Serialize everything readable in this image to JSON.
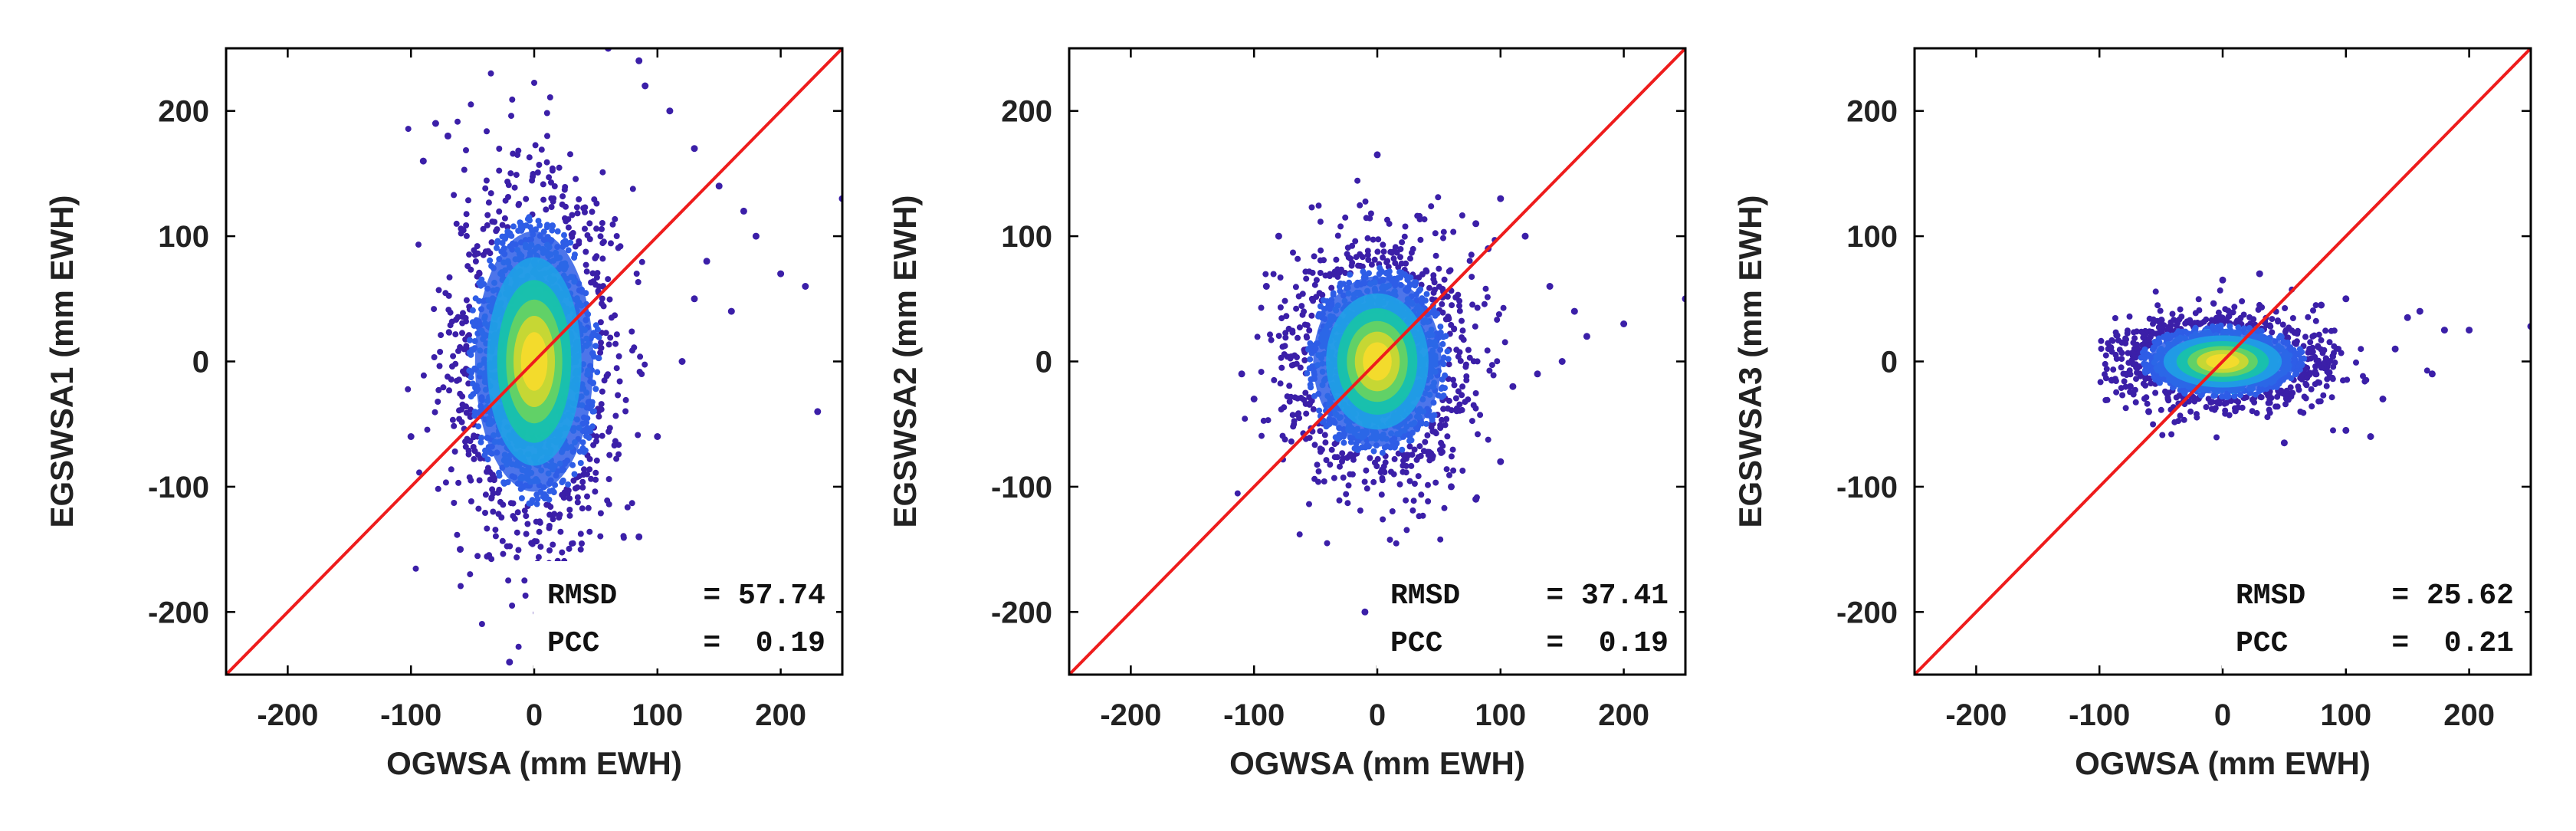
{
  "chart_data": [
    {
      "type": "scatter",
      "title": "",
      "xlabel": "OGWSA (mm EWH)",
      "ylabel": "EGSWSA1 (mm EWH)",
      "xlim": [
        -250,
        250
      ],
      "ylim": [
        -250,
        250
      ],
      "xticks": [
        -200,
        -100,
        0,
        100,
        200
      ],
      "yticks": [
        -200,
        -100,
        0,
        100,
        200
      ],
      "xtick_labels": [
        "-200",
        "-100",
        "0",
        "100",
        "200"
      ],
      "ytick_labels": [
        "-200",
        "-100",
        "0",
        "100",
        "200"
      ],
      "reference_line": {
        "from": [
          -250,
          -250
        ],
        "to": [
          250,
          250
        ],
        "label": "1:1 line"
      },
      "density_cloud": {
        "center": [
          0,
          0
        ],
        "sd_x": 24,
        "sd_y": 52,
        "x_range": [
          -110,
          90
        ],
        "y_range": [
          -250,
          250
        ],
        "color_scale": [
          "#3b1fa8",
          "#2e5de6",
          "#1fa3e6",
          "#17c7a3",
          "#6fd45a",
          "#d8d82b",
          "#fadc2c"
        ]
      },
      "points": [
        [
          -100,
          -60
        ],
        [
          -90,
          160
        ],
        [
          -80,
          190
        ],
        [
          85,
          240
        ],
        [
          90,
          220
        ],
        [
          60,
          250
        ],
        [
          110,
          200
        ],
        [
          130,
          170
        ],
        [
          150,
          140
        ],
        [
          170,
          120
        ],
        [
          200,
          70
        ],
        [
          230,
          -40
        ],
        [
          140,
          80
        ],
        [
          120,
          0
        ],
        [
          100,
          -60
        ],
        [
          85,
          -140
        ],
        [
          -70,
          180
        ],
        [
          -60,
          -150
        ],
        [
          -20,
          -240
        ],
        [
          10,
          -230
        ],
        [
          30,
          -175
        ],
        [
          130,
          50
        ],
        [
          250,
          130
        ],
        [
          180,
          100
        ],
        [
          220,
          60
        ],
        [
          160,
          40
        ]
      ],
      "stats": {
        "rmsd_label": "RMSD",
        "rmsd_value": "= 57.74",
        "pcc_label": "PCC",
        "pcc_value": "=  0.19",
        "rmsd": 57.74,
        "pcc": 0.19
      }
    },
    {
      "type": "scatter",
      "title": "",
      "xlabel": "OGWSA (mm EWH)",
      "ylabel": "EGSWSA2 (mm EWH)",
      "xlim": [
        -250,
        250
      ],
      "ylim": [
        -250,
        250
      ],
      "xticks": [
        -200,
        -100,
        0,
        100,
        200
      ],
      "yticks": [
        -200,
        -100,
        0,
        100,
        200
      ],
      "xtick_labels": [
        "-200",
        "-100",
        "0",
        "100",
        "200"
      ],
      "ytick_labels": [
        "-200",
        "-100",
        "0",
        "100",
        "200"
      ],
      "reference_line": {
        "from": [
          -250,
          -250
        ],
        "to": [
          250,
          250
        ],
        "label": "1:1 line"
      },
      "density_cloud": {
        "center": [
          0,
          0
        ],
        "sd_x": 26,
        "sd_y": 34,
        "x_range": [
          -115,
          105
        ],
        "y_range": [
          -205,
          170
        ],
        "color_scale": [
          "#3b1fa8",
          "#2e5de6",
          "#1fa3e6",
          "#17c7a3",
          "#6fd45a",
          "#d8d82b",
          "#fadc2c"
        ]
      },
      "points": [
        [
          -90,
          60
        ],
        [
          -100,
          -30
        ],
        [
          80,
          110
        ],
        [
          100,
          130
        ],
        [
          120,
          100
        ],
        [
          140,
          60
        ],
        [
          160,
          40
        ],
        [
          200,
          30
        ],
        [
          110,
          -20
        ],
        [
          100,
          -80
        ],
        [
          80,
          -110
        ],
        [
          -10,
          -200
        ],
        [
          0,
          165
        ],
        [
          90,
          90
        ],
        [
          130,
          -10
        ],
        [
          150,
          0
        ],
        [
          250,
          50
        ],
        [
          170,
          20
        ],
        [
          60,
          -100
        ],
        [
          -80,
          100
        ],
        [
          -110,
          -10
        ]
      ],
      "stats": {
        "rmsd_label": "RMSD",
        "rmsd_value": "= 37.41",
        "pcc_label": "PCC",
        "pcc_value": "=  0.19",
        "rmsd": 37.41,
        "pcc": 0.19
      }
    },
    {
      "type": "scatter",
      "title": "",
      "xlabel": "OGWSA (mm EWH)",
      "ylabel": "EGSWSA3 (mm EWH)",
      "xlim": [
        -250,
        250
      ],
      "ylim": [
        -250,
        250
      ],
      "xticks": [
        -200,
        -100,
        0,
        100,
        200
      ],
      "yticks": [
        -200,
        -100,
        0,
        100,
        200
      ],
      "xtick_labels": [
        "-200",
        "-100",
        "0",
        "100",
        "200"
      ],
      "ytick_labels": [
        "-200",
        "-100",
        "0",
        "100",
        "200"
      ],
      "reference_line": {
        "from": [
          -250,
          -250
        ],
        "to": [
          250,
          250
        ],
        "label": "1:1 line"
      },
      "density_cloud": {
        "center": [
          0,
          0
        ],
        "sd_x": 30,
        "sd_y": 13,
        "x_range": [
          -100,
          200
        ],
        "y_range": [
          -65,
          75
        ],
        "color_scale": [
          "#3b1fa8",
          "#2e5de6",
          "#1fa3e6",
          "#17c7a3",
          "#6fd45a",
          "#d8d82b",
          "#fadc2c"
        ]
      },
      "points": [
        [
          -90,
          -15
        ],
        [
          -75,
          -20
        ],
        [
          150,
          35
        ],
        [
          180,
          25
        ],
        [
          200,
          25
        ],
        [
          170,
          -10
        ],
        [
          130,
          -30
        ],
        [
          100,
          -55
        ],
        [
          120,
          -60
        ],
        [
          50,
          -65
        ],
        [
          0,
          65
        ],
        [
          30,
          70
        ],
        [
          100,
          50
        ],
        [
          250,
          28
        ],
        [
          160,
          40
        ],
        [
          -60,
          -40
        ],
        [
          80,
          45
        ],
        [
          140,
          10
        ]
      ],
      "stats": {
        "rmsd_label": "RMSD",
        "rmsd_value": "= 25.62",
        "pcc_label": "PCC",
        "pcc_value": "=  0.21",
        "rmsd": 25.62,
        "pcc": 0.21
      }
    }
  ],
  "colors": {
    "reference_line": "#ee1c1c",
    "axes": "#000000",
    "sparse_points": "#3b1fa8"
  }
}
